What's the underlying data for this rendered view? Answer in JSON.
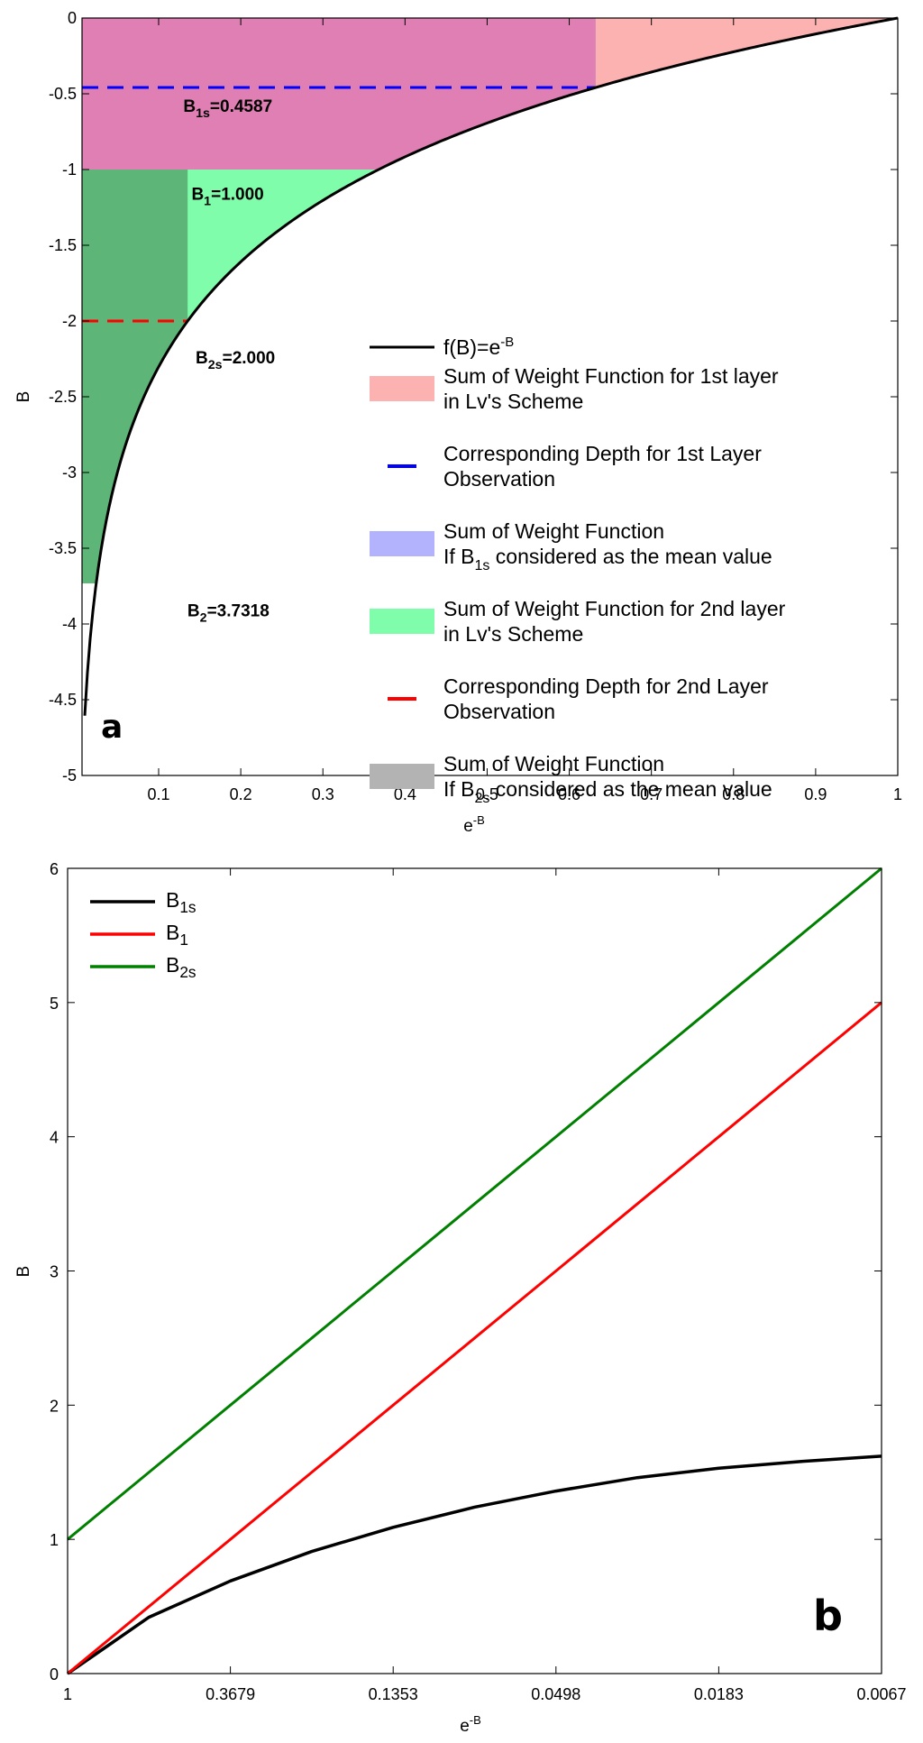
{
  "chart_data": [
    {
      "panel": "a",
      "type": "line",
      "xlabel": "e",
      "xlabel_sup": "-B",
      "ylabel": "B",
      "xlim": [
        0.0067,
        1
      ],
      "ylim": [
        -5,
        0
      ],
      "xticks": [
        "0.1",
        "0.2",
        "0.3",
        "0.4",
        "0.5",
        "0.6",
        "0.7",
        "0.8",
        "0.9",
        "1"
      ],
      "yticks": [
        "0",
        "-0.5",
        "-1",
        "-1.5",
        "-2",
        "-2.5",
        "-3",
        "-3.5",
        "-4",
        "-4.5",
        "-5"
      ],
      "curve": {
        "name": "f(B)=e",
        "name_sup": "-B",
        "color": "#000000",
        "function": "B = ln(x)",
        "x_range": [
          0.01,
          1
        ]
      },
      "regions": [
        {
          "name": "weight-1st-layer",
          "color": "#fdb2b2",
          "x": [
            0.3679,
            1
          ],
          "y": [
            -1,
            0
          ]
        },
        {
          "name": "weight-b1s-mean",
          "color": "#b3b3fd",
          "x": [
            0.3679,
            0.6321
          ],
          "y": [
            -1,
            0
          ]
        },
        {
          "name": "overlap-1",
          "color": "#e07fb4",
          "x": [
            0.0067,
            0.6321
          ],
          "y": [
            -1,
            0
          ]
        },
        {
          "name": "weight-2nd-layer",
          "color": "#80fdaa",
          "x": [
            0.0067,
            0.3679
          ],
          "y": [
            -3.7318,
            -1
          ]
        },
        {
          "name": "weight-b2s-mean",
          "color": "#b3b3b3",
          "x": [
            0.0067,
            0.1353
          ],
          "y": [
            -3.7318,
            -2
          ]
        },
        {
          "name": "overlap-2",
          "color": "#5db578",
          "x": [
            0.0067,
            0.1353
          ],
          "y": [
            -3.7318,
            -1
          ]
        }
      ],
      "dashed_lines": [
        {
          "name": "depth-1st-layer",
          "color": "#0000ff",
          "y": -0.4587,
          "x": [
            0.0067,
            0.6321
          ]
        },
        {
          "name": "depth-2nd-layer",
          "color": "#ff0000",
          "y": -2.0,
          "x": [
            0.0067,
            0.1353
          ]
        }
      ],
      "annotations": [
        {
          "base": "B",
          "sub": "1s",
          "text": "=0.4587",
          "x": 0.13,
          "y": -0.62
        },
        {
          "base": "B",
          "sub": "1",
          "text": "=1.000",
          "x": 0.14,
          "y": -1.2
        },
        {
          "base": "B",
          "sub": "2s",
          "text": "=2.000",
          "x": 0.145,
          "y": -2.28
        },
        {
          "base": "B",
          "sub": "2",
          "text": "=3.7318",
          "x": 0.135,
          "y": -3.95
        }
      ],
      "legend": {
        "placement": "lower-right",
        "entries": [
          {
            "kind": "line",
            "color": "#000000",
            "lines": [
              "f(B)=e"
            ],
            "sup": "-B"
          },
          {
            "kind": "patch",
            "color": "#fdb2b2",
            "lines": [
              "Sum of Weight Function for 1st layer",
              "in Lv's Scheme"
            ]
          },
          {
            "kind": "dash",
            "color": "#0000ff",
            "lines": [
              "Corresponding Depth for 1st  Layer",
              "Observation"
            ]
          },
          {
            "kind": "patch",
            "color": "#b3b3fd",
            "lines": [
              "Sum of Weight Function",
              "If  B",
              " considered as the mean value"
            ],
            "sub": "1s"
          },
          {
            "kind": "patch",
            "color": "#80fdaa",
            "lines": [
              "Sum of Weight Function for 2nd layer",
              "in Lv's Scheme"
            ]
          },
          {
            "kind": "dash",
            "color": "#ff0000",
            "lines": [
              "Corresponding Depth for  2nd Layer",
              "Observation"
            ]
          },
          {
            "kind": "patch",
            "color": "#b3b3b3",
            "lines": [
              "Sum of Weight Function",
              "If  B",
              " considered as the mean value"
            ],
            "sub": "2s"
          }
        ]
      },
      "panel_label": "a"
    },
    {
      "panel": "b",
      "type": "line",
      "xlabel": "e",
      "xlabel_sup": "-B",
      "ylabel": "B",
      "xlim_B": [
        0,
        5
      ],
      "ylim": [
        0,
        6
      ],
      "xticks": [
        "1",
        "0.3679",
        "0.1353",
        "0.0498",
        "0.0183",
        "0.0067"
      ],
      "yticks": [
        "0",
        "1",
        "2",
        "3",
        "4",
        "5",
        "6"
      ],
      "x_B": [
        0,
        0.5,
        1,
        1.5,
        2,
        2.5,
        3,
        3.5,
        4,
        4.5,
        5
      ],
      "series": [
        {
          "base": "B",
          "sub": "1s",
          "color": "#000000",
          "values": [
            0,
            0.42,
            0.69,
            0.91,
            1.09,
            1.24,
            1.36,
            1.46,
            1.53,
            1.58,
            1.62
          ]
        },
        {
          "base": "B",
          "sub": "1",
          "color": "#ff0000",
          "values": [
            0,
            0.5,
            1,
            1.5,
            2,
            2.5,
            3,
            3.5,
            4,
            4.5,
            5
          ]
        },
        {
          "base": "B",
          "sub": "2s",
          "color": "#008000",
          "values": [
            1,
            1.5,
            2,
            2.5,
            3,
            3.5,
            4,
            4.5,
            5,
            5.5,
            6
          ]
        }
      ],
      "legend_placement": "top-left",
      "panel_label": "b"
    }
  ]
}
